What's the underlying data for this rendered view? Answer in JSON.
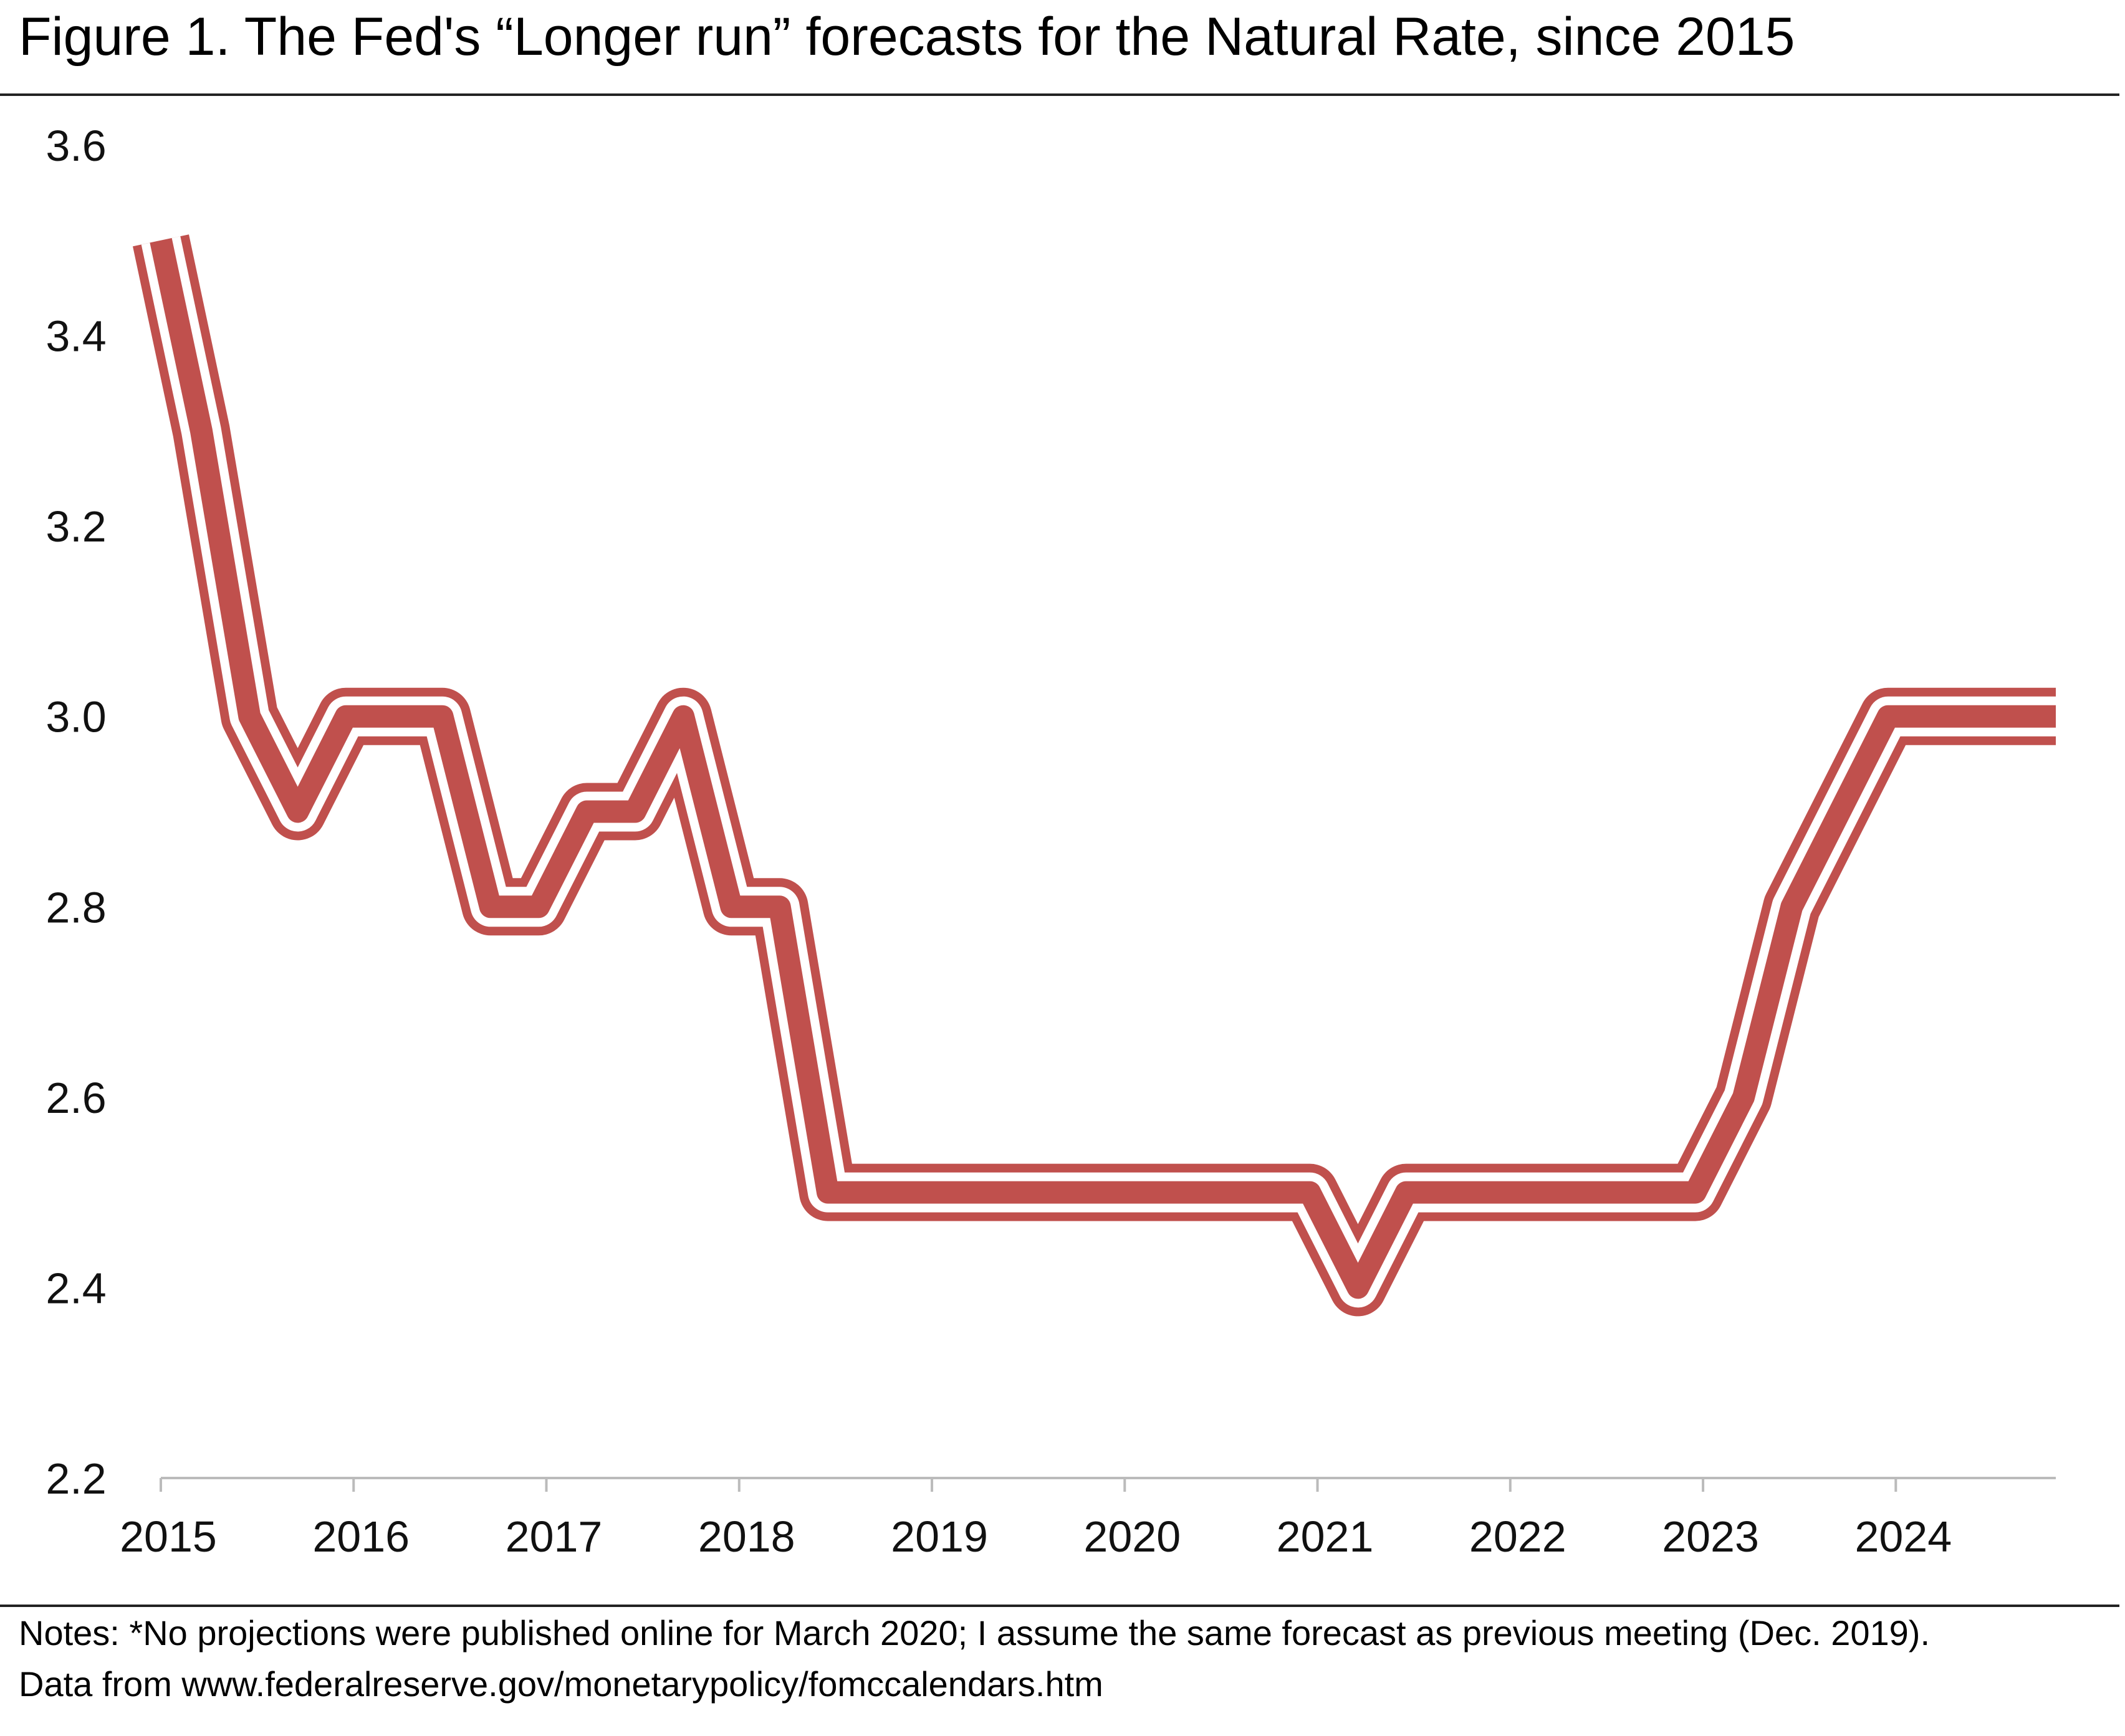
{
  "title": "Figure 1. The Fed's “Longer run” forecasts for the Natural Rate, since 2015",
  "notes": [
    "Notes: *No projections were published online for March 2020; I assume the same forecast as previous meeting (Dec. 2019).",
    "Data from www.federalreserve.gov/monetarypolicy/fomccalendars.htm"
  ],
  "colors": {
    "line": "#c0504d",
    "axis": "#bbbbbb",
    "text": "#111111"
  },
  "chart_data": {
    "type": "line",
    "title": "",
    "xlabel": "",
    "ylabel": "",
    "xlim": [
      2015,
      2024.83
    ],
    "ylim": [
      2.2,
      3.6
    ],
    "x_ticks": [
      "2015",
      "2016",
      "2017",
      "2018",
      "2019",
      "2020",
      "2021",
      "2022",
      "2023",
      "2024"
    ],
    "y_ticks": [
      "2.2",
      "2.4",
      "2.6",
      "2.8",
      "3.0",
      "3.2",
      "3.4",
      "3.6"
    ],
    "grid": false,
    "legend": "none",
    "series": [
      {
        "x": [
          2015.0,
          2015.21,
          2015.46,
          2015.71,
          2015.96,
          2016.21,
          2016.46,
          2016.71,
          2016.96,
          2017.21,
          2017.46,
          2017.71,
          2017.96,
          2018.21,
          2018.46,
          2018.71,
          2018.96,
          2019.21,
          2019.46,
          2019.71,
          2019.96,
          2020.21,
          2020.46,
          2020.71,
          2020.96,
          2021.21,
          2021.46,
          2021.71,
          2021.96,
          2022.21,
          2022.46,
          2022.71,
          2022.96,
          2023.21,
          2023.46,
          2023.71,
          2023.96,
          2024.21,
          2024.46,
          2024.71,
          2024.83
        ],
        "values": [
          3.5,
          3.3,
          3.0,
          2.9,
          3.0,
          3.0,
          3.0,
          2.8,
          2.8,
          2.9,
          2.9,
          3.0,
          2.8,
          2.8,
          2.5,
          2.5,
          2.5,
          2.5,
          2.5,
          2.5,
          2.5,
          2.5,
          2.5,
          2.5,
          2.5,
          2.4,
          2.5,
          2.5,
          2.5,
          2.5,
          2.5,
          2.5,
          2.5,
          2.6,
          2.8,
          2.9,
          3.0,
          3.0,
          3.0,
          3.0,
          3.0
        ]
      }
    ]
  }
}
